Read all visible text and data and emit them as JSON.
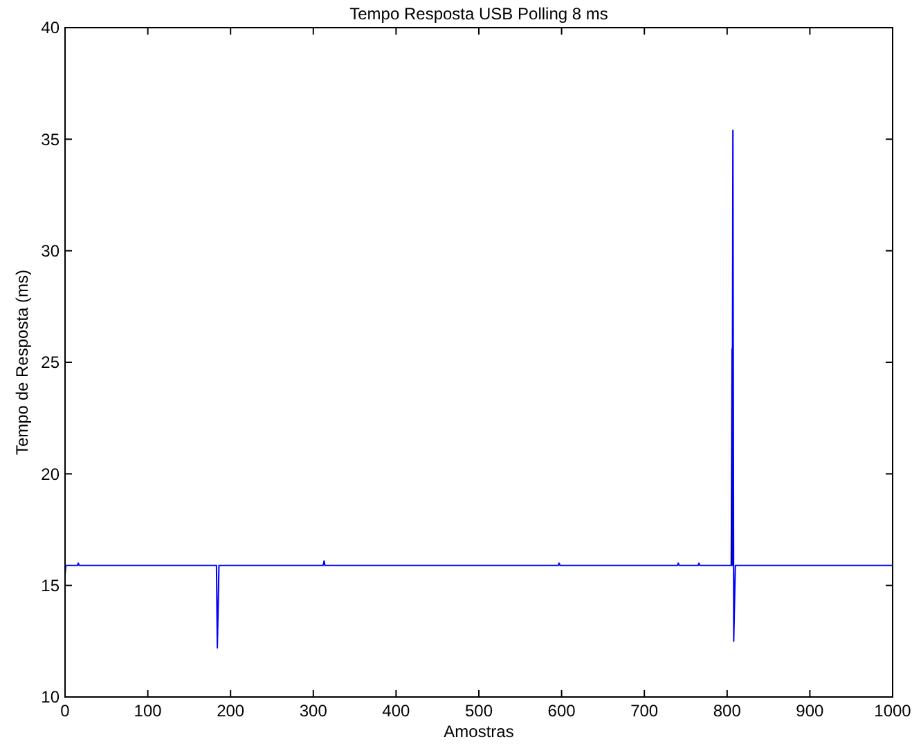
{
  "chart_data": {
    "type": "line",
    "title": "Tempo Resposta USB Polling 8 ms",
    "xlabel": "Amostras",
    "ylabel": "Tempo de Resposta (ms)",
    "xlim": [
      0,
      1000
    ],
    "ylim": [
      10,
      40
    ],
    "xticks": [
      0,
      100,
      200,
      300,
      400,
      500,
      600,
      700,
      800,
      900,
      1000
    ],
    "yticks": [
      10,
      15,
      20,
      25,
      30,
      35,
      40
    ],
    "series": [
      {
        "color": "#000000",
        "x": [
          805,
          806,
          807,
          808
        ],
        "values": [
          15.9,
          25.6,
          15.9,
          15.9
        ]
      },
      {
        "color": "#0000ff",
        "x": [
          0,
          1,
          2,
          15,
          16,
          17,
          183,
          184,
          185,
          186,
          312,
          313,
          314,
          596,
          597,
          598,
          740,
          741,
          742,
          765,
          766,
          767,
          806,
          807,
          808,
          809,
          810,
          1000
        ],
        "values": [
          15.5,
          15.9,
          15.9,
          15.9,
          16.0,
          15.9,
          15.9,
          12.2,
          14.0,
          15.9,
          15.9,
          16.1,
          15.9,
          15.9,
          16.0,
          15.9,
          15.9,
          16.0,
          15.9,
          15.9,
          16.0,
          15.9,
          15.9,
          35.4,
          12.5,
          14.3,
          15.9,
          15.9
        ]
      }
    ]
  }
}
